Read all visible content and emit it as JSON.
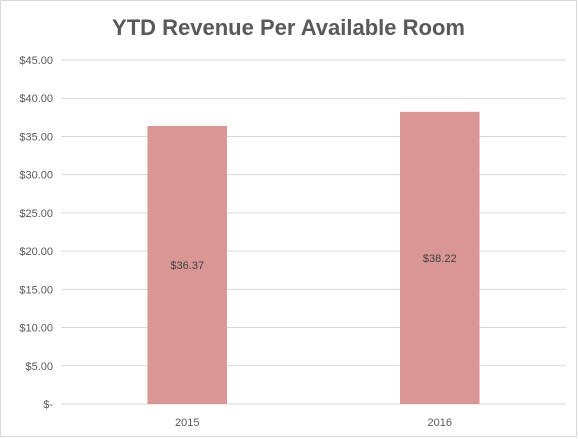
{
  "chart_data": {
    "type": "bar",
    "title": "YTD Revenue Per Available Room",
    "xlabel": "",
    "ylabel": "",
    "categories": [
      "2015",
      "2016"
    ],
    "values": [
      36.37,
      38.22
    ],
    "data_labels": [
      "$36.37",
      "$38.22"
    ],
    "ylim": [
      0,
      45
    ],
    "yticks": [
      0,
      5,
      10,
      15,
      20,
      25,
      30,
      35,
      40,
      45
    ],
    "ytick_labels": [
      "$-",
      "$5.00",
      "$10.00",
      "$15.00",
      "$20.00",
      "$25.00",
      "$30.00",
      "$35.00",
      "$40.00",
      "$45.00"
    ],
    "grid": true,
    "bar_color": "#d99694",
    "gridline_color": "#d9d9d9"
  }
}
